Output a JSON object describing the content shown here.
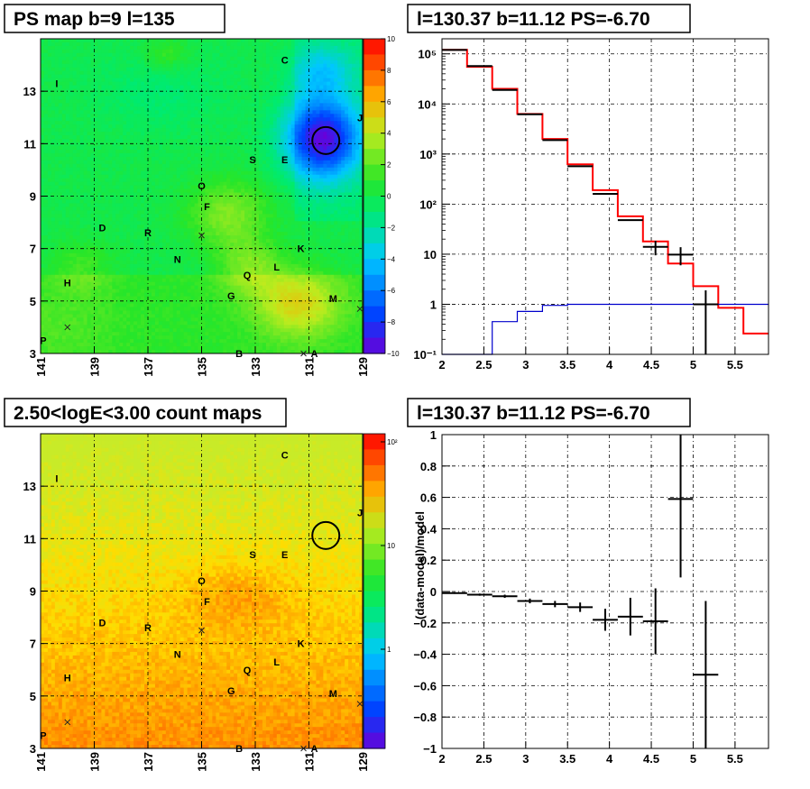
{
  "chart_data": [
    {
      "type": "heatmap",
      "title": "PS map b=9 l=135",
      "xticks": [
        "141",
        "139",
        "137",
        "135",
        "133",
        "131",
        "129"
      ],
      "yticks": [
        "3",
        "5",
        "7",
        "9",
        "11",
        "13"
      ],
      "xlim": [
        141,
        129
      ],
      "ylim": [
        3,
        15
      ],
      "colorbar": {
        "min": -10,
        "max": 10,
        "ticks": [
          "10",
          "8",
          "6",
          "4",
          "2",
          "0",
          "−2",
          "−4",
          "−6",
          "−8",
          "−10"
        ]
      },
      "sources": [
        {
          "label": "C",
          "l": 131.9,
          "b": 14.2
        },
        {
          "label": "I",
          "l": 140.4,
          "b": 13.3
        },
        {
          "label": "S",
          "l": 133.1,
          "b": 10.4
        },
        {
          "label": "E",
          "l": 131.9,
          "b": 10.4
        },
        {
          "label": "O",
          "l": 135.0,
          "b": 9.4
        },
        {
          "label": "F",
          "l": 134.8,
          "b": 8.6
        },
        {
          "label": "D",
          "l": 138.7,
          "b": 7.8
        },
        {
          "label": "R",
          "l": 137.0,
          "b": 7.6
        },
        {
          "label": "K",
          "l": 131.3,
          "b": 7.0
        },
        {
          "label": "N",
          "l": 135.9,
          "b": 6.6
        },
        {
          "label": "L",
          "l": 132.2,
          "b": 6.3
        },
        {
          "label": "Q",
          "l": 133.3,
          "b": 6.0
        },
        {
          "label": "H",
          "l": 140.0,
          "b": 5.7
        },
        {
          "label": "G",
          "l": 133.9,
          "b": 5.2
        },
        {
          "label": "M",
          "l": 130.1,
          "b": 5.1
        },
        {
          "label": "P",
          "l": 140.9,
          "b": 3.5
        },
        {
          "label": "B",
          "l": 133.6,
          "b": 3.0
        },
        {
          "label": "A",
          "l": 130.8,
          "b": 3.0
        },
        {
          "label": "J",
          "l": 129.1,
          "b": 12.0
        }
      ],
      "circle": {
        "l": 130.37,
        "b": 11.12
      }
    },
    {
      "type": "line",
      "title": "l=130.37 b=11.12 PS=-6.70",
      "xlim": [
        2,
        5.9
      ],
      "ylim": [
        0.1,
        200000
      ],
      "yscale": "log",
      "xticks": [
        "2",
        "2.5",
        "3",
        "3.5",
        "4",
        "4.5",
        "5",
        "5.5"
      ],
      "yticks": [
        "10⁻¹",
        "1",
        "10",
        "10²",
        "10³",
        "10⁴",
        "10⁵"
      ],
      "series": [
        {
          "kind": "step",
          "color": "#ff0000",
          "edges": [
            2.0,
            2.3,
            2.6,
            2.9,
            3.2,
            3.5,
            3.8,
            4.1,
            4.4,
            4.7,
            5.0,
            5.3,
            5.6,
            5.9
          ],
          "values": [
            120000,
            55000,
            20000,
            6300,
            2000,
            620,
            190,
            57,
            18,
            6.5,
            2.3,
            0.85,
            0.26
          ]
        },
        {
          "kind": "step",
          "color": "#0000cc",
          "edges": [
            2.0,
            2.3,
            2.6,
            2.9,
            3.2,
            3.5,
            3.8,
            4.1,
            4.4,
            4.7,
            5.0,
            5.3,
            5.6,
            5.9
          ],
          "values": [
            0.05,
            0.05,
            0.45,
            0.72,
            0.95,
            1,
            1,
            1,
            1,
            1,
            1,
            1,
            1
          ]
        },
        {
          "kind": "points",
          "color": "#000000",
          "x": [
            2.15,
            2.45,
            2.75,
            3.05,
            3.35,
            3.65,
            3.95,
            4.25,
            4.55,
            4.85,
            5.15
          ],
          "y": [
            120000,
            57000,
            19000,
            6200,
            1900,
            570,
            160,
            48,
            14,
            9.8,
            1.0
          ],
          "yerr_lo": [
            0,
            0,
            0,
            0,
            0,
            0,
            0,
            0,
            4.5,
            3.8,
            1.0
          ],
          "yerr_hi": [
            0,
            0,
            0,
            0,
            0,
            0,
            0,
            0,
            4.5,
            4,
            0.9
          ]
        }
      ]
    },
    {
      "type": "heatmap",
      "title": "2.50<logE<3.00 count maps",
      "xticks": [
        "141",
        "139",
        "137",
        "135",
        "133",
        "131",
        "129"
      ],
      "yticks": [
        "3",
        "5",
        "7",
        "9",
        "11",
        "13"
      ],
      "xlim": [
        141,
        129
      ],
      "ylim": [
        3,
        15
      ],
      "colorbar": {
        "scale": "log",
        "ticks": [
          "10²",
          "10",
          "1"
        ]
      }
    },
    {
      "type": "scatter",
      "title": "l=130.37 b=11.12 PS=-6.70",
      "ylabel": "(data-model)/model",
      "xlim": [
        2,
        5.9
      ],
      "ylim": [
        -1,
        1
      ],
      "xticks": [
        "2",
        "2.5",
        "3",
        "3.5",
        "4",
        "4.5",
        "5",
        "5.5"
      ],
      "yticks": [
        "1",
        "0.8",
        "0.6",
        "0.4",
        "0.2",
        "0",
        "−0.2",
        "−0.4",
        "−0.6",
        "−0.8",
        "−1"
      ],
      "points": {
        "x": [
          2.15,
          2.45,
          2.75,
          3.05,
          3.35,
          3.65,
          3.95,
          4.25,
          4.55,
          4.85,
          5.15
        ],
        "y": [
          -0.01,
          -0.02,
          -0.03,
          -0.06,
          -0.08,
          -0.1,
          -0.18,
          -0.16,
          -0.19,
          0.59,
          -0.53
        ],
        "yerr": [
          0.005,
          0.007,
          0.01,
          0.015,
          0.02,
          0.03,
          0.07,
          0.12,
          0.21,
          0.5,
          0.47
        ]
      },
      "xerr": 0.15
    }
  ]
}
